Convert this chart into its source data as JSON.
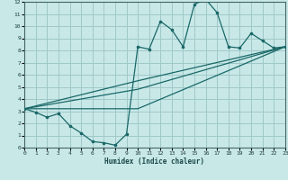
{
  "xlabel": "Humidex (Indice chaleur)",
  "bg_color": "#c8e8e8",
  "grid_color": "#a0c8c8",
  "line_color": "#1a6868",
  "xlim": [
    0,
    23
  ],
  "ylim": [
    0,
    12
  ],
  "xticks": [
    0,
    1,
    2,
    3,
    4,
    5,
    6,
    7,
    8,
    9,
    10,
    11,
    12,
    13,
    14,
    15,
    16,
    17,
    18,
    19,
    20,
    21,
    22,
    23
  ],
  "yticks": [
    0,
    1,
    2,
    3,
    4,
    5,
    6,
    7,
    8,
    9,
    10,
    11,
    12
  ],
  "line1_x": [
    0,
    1,
    2,
    3,
    4,
    5,
    6,
    7,
    8,
    9,
    10,
    11,
    12,
    13,
    14,
    15,
    16,
    17,
    18,
    19,
    20,
    21,
    22,
    23
  ],
  "line1_y": [
    3.2,
    2.9,
    2.5,
    2.8,
    1.8,
    1.2,
    0.5,
    0.4,
    0.2,
    1.1,
    8.3,
    8.1,
    10.4,
    9.7,
    8.3,
    11.8,
    12.2,
    11.1,
    8.3,
    8.2,
    9.4,
    8.8,
    8.2,
    8.3
  ],
  "line2_x": [
    0,
    10,
    23
  ],
  "line2_y": [
    3.2,
    4.8,
    8.3
  ],
  "line3_x": [
    0,
    10,
    23
  ],
  "line3_y": [
    3.2,
    5.5,
    8.3
  ],
  "line4_x": [
    0,
    10,
    23
  ],
  "line4_y": [
    3.2,
    3.2,
    8.3
  ]
}
